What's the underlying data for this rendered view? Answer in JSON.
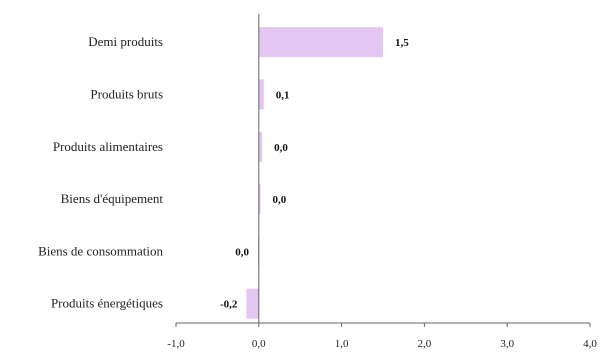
{
  "chart_data": {
    "type": "bar",
    "orientation": "horizontal",
    "title": "",
    "xlabel": "",
    "ylabel": "",
    "categories": [
      "Demi produits",
      "Produits bruts",
      "Produits alimentaires",
      "Biens d'équipement",
      "Biens de consommation",
      "Produits énergétiques"
    ],
    "values": [
      1.5,
      0.06,
      0.04,
      0.02,
      -0.01,
      -0.15
    ],
    "data_labels": [
      "1,5",
      "0,1",
      "0,0",
      "0,0",
      "0,0",
      "-0,2"
    ],
    "xlim": [
      -1.0,
      4.0
    ],
    "xticks": [
      -1.0,
      0.0,
      1.0,
      2.0,
      3.0,
      4.0
    ],
    "xtick_labels": [
      "-1,0",
      "0,0",
      "1,0",
      "2,0",
      "3,0",
      "4,0"
    ],
    "grid": false,
    "bar_color": "#e3c6f2",
    "axis_color": "#666666"
  }
}
